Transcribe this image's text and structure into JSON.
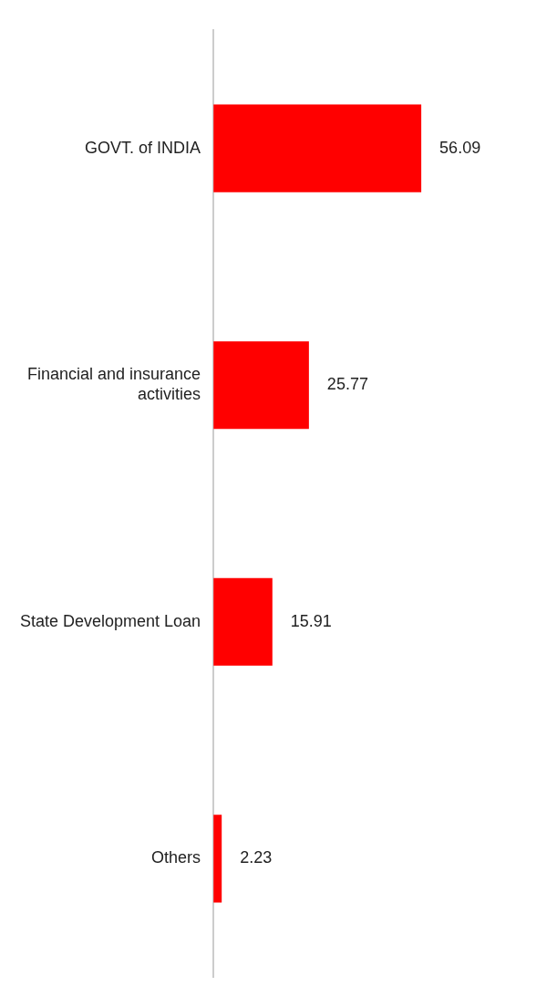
{
  "chart_data": {
    "type": "bar",
    "orientation": "horizontal",
    "categories": [
      "GOVT. of INDIA",
      "Financial and insurance activities",
      "State Development Loan",
      "Others"
    ],
    "values": [
      56.09,
      25.77,
      15.91,
      2.23
    ],
    "color": "#ff0000",
    "data_labels": true,
    "grid": false,
    "legend": false
  }
}
